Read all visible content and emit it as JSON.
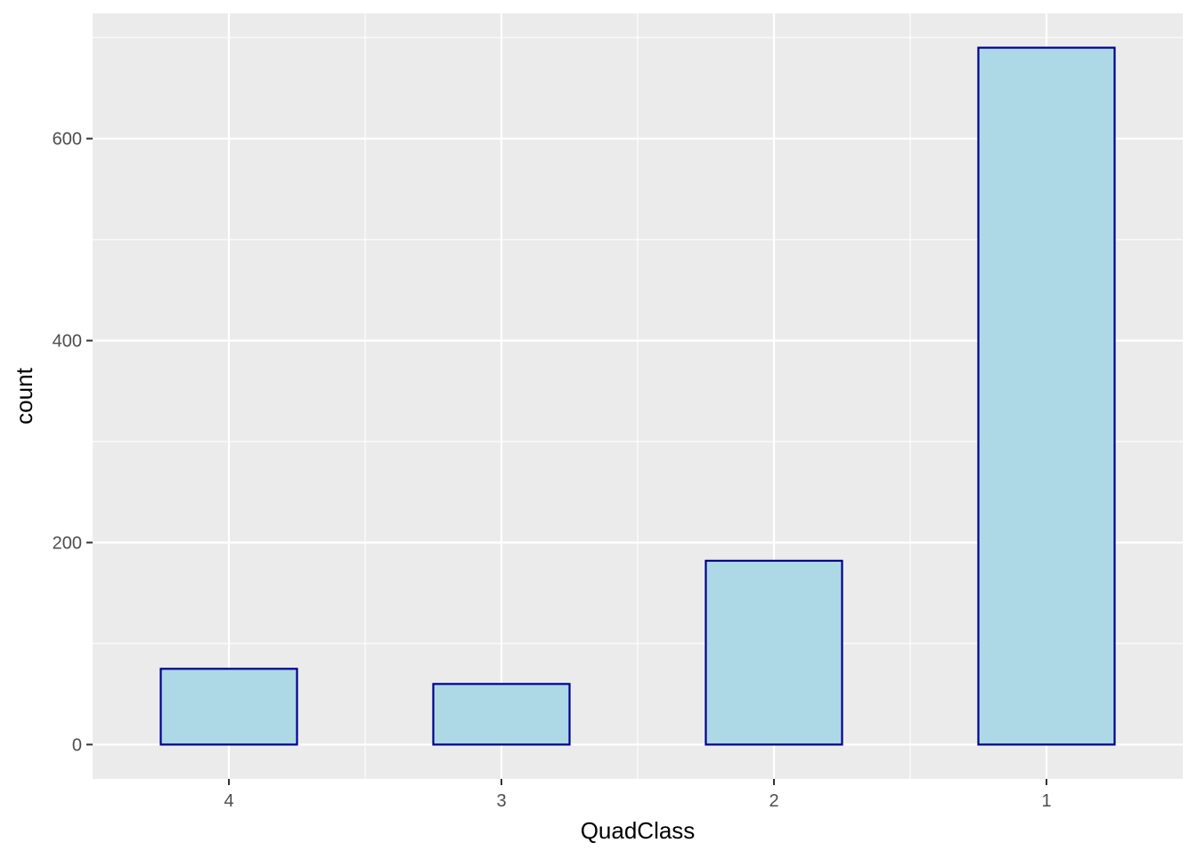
{
  "chart_data": {
    "type": "bar",
    "title": "",
    "xlabel": "QuadClass",
    "ylabel": "count",
    "categories": [
      "4",
      "3",
      "2",
      "1"
    ],
    "values": [
      75,
      60,
      182,
      690
    ],
    "ylim": [
      -34,
      724
    ],
    "yticks": [
      0,
      200,
      400,
      600
    ],
    "ytick_labels": [
      "0",
      "200",
      "400",
      "600"
    ],
    "grid": true,
    "legend": "none",
    "colors": {
      "panel_background": "#ebebeb",
      "grid": "#ffffff",
      "bar_fill": "#add8e6",
      "bar_outline": "#00008b",
      "tick_label": "#4d4d4d",
      "axis_title": "#000000"
    }
  }
}
